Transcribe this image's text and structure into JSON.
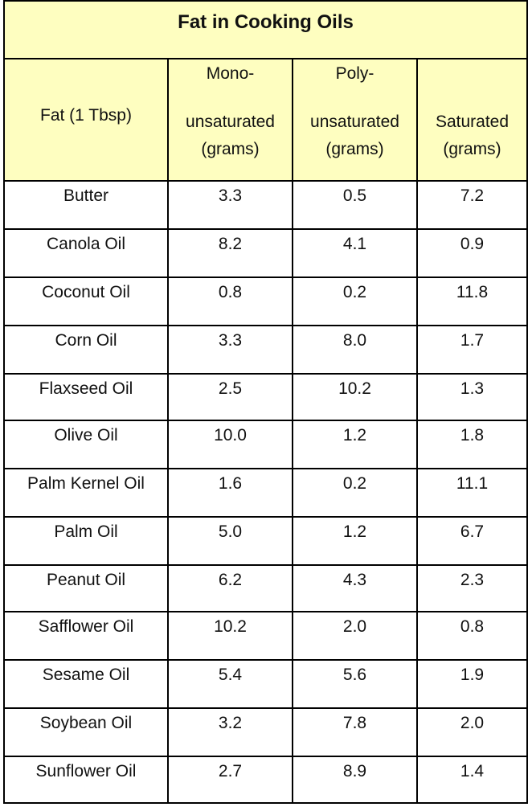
{
  "table": {
    "title": "Fat in Cooking Oils",
    "headers": [
      {
        "lines": [
          "",
          "Fat (1 Tbsp)",
          ""
        ]
      },
      {
        "lines": [
          "Mono-",
          "unsaturated",
          "(grams)"
        ]
      },
      {
        "lines": [
          "Poly-",
          "unsaturated",
          "(grams)"
        ]
      },
      {
        "lines": [
          "",
          "Saturated",
          "(grams)"
        ]
      }
    ],
    "rows": [
      [
        "Butter",
        "3.3",
        "0.5",
        "7.2"
      ],
      [
        "Canola Oil",
        "8.2",
        "4.1",
        "0.9"
      ],
      [
        "Coconut Oil",
        "0.8",
        "0.2",
        "11.8"
      ],
      [
        "Corn Oil",
        "3.3",
        "8.0",
        "1.7"
      ],
      [
        "Flaxseed Oil",
        "2.5",
        "10.2",
        "1.3"
      ],
      [
        "Olive Oil",
        "10.0",
        "1.2",
        "1.8"
      ],
      [
        "Palm Kernel Oil",
        "1.6",
        "0.2",
        "11.1"
      ],
      [
        "Palm Oil",
        "5.0",
        "1.2",
        "6.7"
      ],
      [
        "Peanut Oil",
        "6.2",
        "4.3",
        "2.3"
      ],
      [
        "Safflower Oil",
        "10.2",
        "2.0",
        "0.8"
      ],
      [
        "Sesame Oil",
        "5.4",
        "5.6",
        "1.9"
      ],
      [
        "Soybean Oil",
        "3.2",
        "7.8",
        "2.0"
      ],
      [
        "Sunflower Oil",
        "2.7",
        "8.9",
        "1.4"
      ]
    ]
  }
}
